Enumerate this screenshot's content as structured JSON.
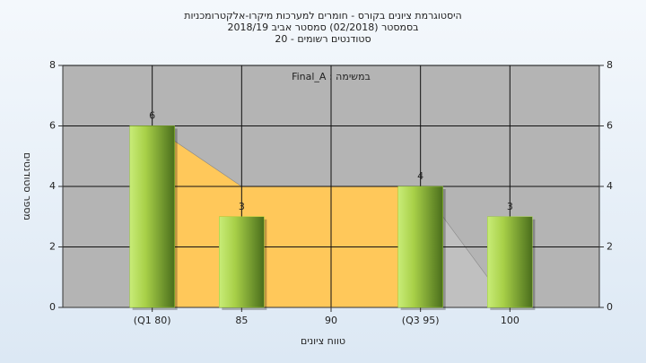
{
  "chart_data": {
    "type": "bar",
    "title_lines": [
      "היסטוגרמת ציונים בקורס - חומרים למערכות מיקרו-אלקטרומכניות",
      "בסמסטר  (02/2018)  סמסטר אביב 2018/19",
      "סטודנטים רשומים - 20"
    ],
    "annotation": "במשימה : Final_A",
    "y_label": "מספר סטודנטים",
    "x_label": "טווח ציונים",
    "categories": [
      "(Q1 80)",
      "85",
      "90",
      "(Q3 95)",
      "100"
    ],
    "values": [
      6,
      3,
      null,
      4,
      3
    ],
    "color": "#9acd32",
    "areas": [
      {
        "color": "#ffc85a",
        "values": [
          6,
          4,
          4,
          4,
          null
        ]
      },
      {
        "color": "#c0c0c0",
        "values": [
          null,
          null,
          null,
          4,
          0
        ]
      }
    ],
    "ylim": [
      0,
      8
    ],
    "yticks": [
      0,
      2,
      4,
      6,
      8
    ],
    "y2lim": [
      0,
      8
    ],
    "y2ticks": [
      0,
      2,
      4,
      6,
      8
    ],
    "grid": true
  }
}
